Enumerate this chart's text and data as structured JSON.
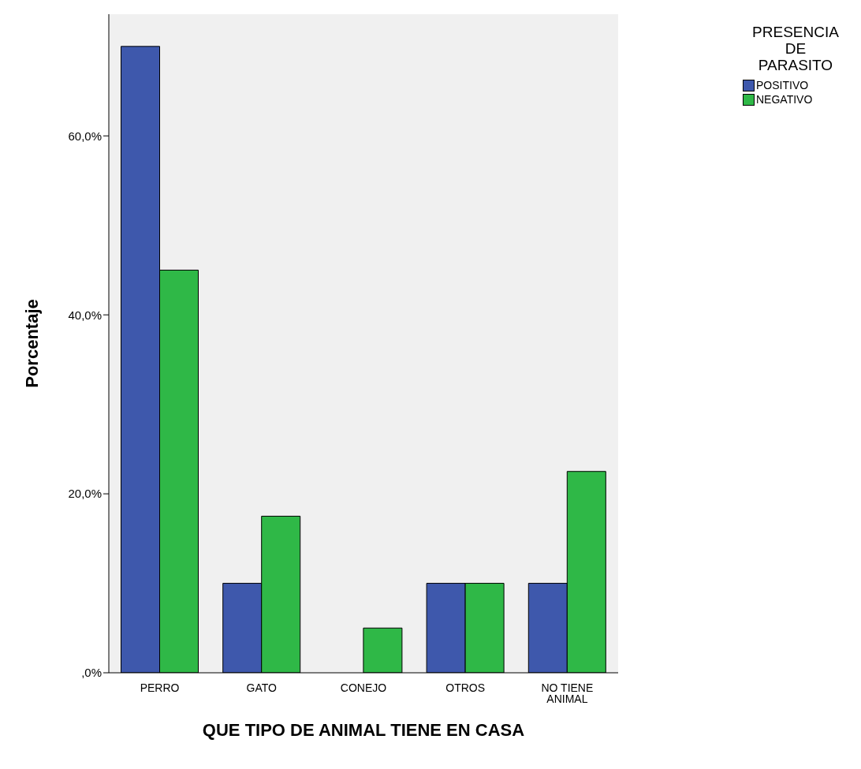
{
  "chart_data": {
    "type": "bar",
    "xlabel": "QUE TIPO DE ANIMAL TIENE EN CASA",
    "ylabel": "Porcentaje",
    "legend_title": "PRESENCIA DE PARASITO",
    "categories": [
      "PERRO",
      "GATO",
      "CONEJO",
      "OTROS",
      "NO TIENE ANIMAL"
    ],
    "series": [
      {
        "name": "POSITIVO",
        "color": "#3e58ac",
        "values": [
          70,
          10,
          0,
          10,
          10
        ]
      },
      {
        "name": "NEGATIVO",
        "color": "#2fb847",
        "values": [
          45,
          17.5,
          5,
          10,
          22.5
        ]
      }
    ],
    "ylim": [
      0,
      73.6
    ],
    "yticks": [
      {
        "value": 0,
        "label": ",0%"
      },
      {
        "value": 20,
        "label": "20,0%"
      },
      {
        "value": 40,
        "label": "40,0%"
      },
      {
        "value": 60,
        "label": "60,0%"
      }
    ],
    "grid": false,
    "legend": "top right"
  }
}
